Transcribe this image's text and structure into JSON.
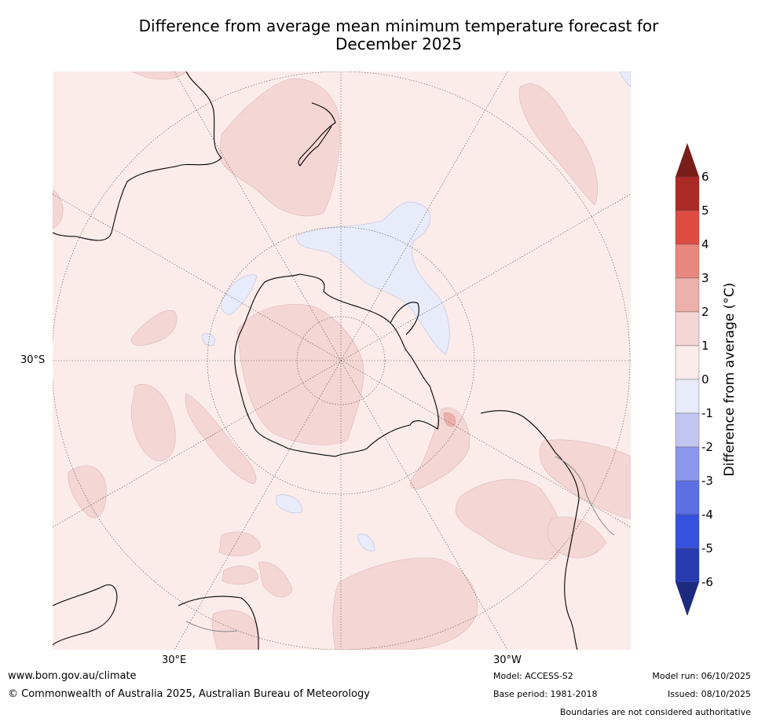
{
  "title_line1": "Difference from average mean minimum temperature forecast for",
  "title_line2": "December 2025",
  "axis": {
    "lat_label": "30°S",
    "lon_labels": [
      "30°E",
      "30°W"
    ]
  },
  "colorbar": {
    "label": "Difference from average (°C)",
    "ticks": [
      "6",
      "5",
      "4",
      "3",
      "2",
      "1",
      "0",
      "-1",
      "-2",
      "-3",
      "-4",
      "-5",
      "-6"
    ],
    "bins": [
      {
        "range": "above 6",
        "color": "#7a1e1a"
      },
      {
        "range": "5 to 6",
        "color": "#ab2a24"
      },
      {
        "range": "4 to 5",
        "color": "#dc4c42"
      },
      {
        "range": "3 to 4",
        "color": "#e8877d"
      },
      {
        "range": "2 to 3",
        "color": "#edb0aa"
      },
      {
        "range": "1 to 2",
        "color": "#f4d6d4"
      },
      {
        "range": "0 to 1",
        "color": "#fbecea"
      },
      {
        "range": "-1 to 0",
        "color": "#e8ebf9"
      },
      {
        "range": "-2 to -1",
        "color": "#c1c6f1"
      },
      {
        "range": "-3 to -2",
        "color": "#8a97ea"
      },
      {
        "range": "-4 to -3",
        "color": "#5d70e2"
      },
      {
        "range": "-5 to -4",
        "color": "#3452dd"
      },
      {
        "range": "-6 to -5",
        "color": "#283cb0"
      },
      {
        "range": "below -6",
        "color": "#1e2a80"
      }
    ]
  },
  "colors": {
    "background_anomaly": "#fbecea",
    "warm_patch": "#f4d6d4",
    "warmer_patch": "#edb0aa",
    "cool_patch": "#e8ebf9",
    "coastline": "#000000",
    "grid": "#555555"
  },
  "footer": {
    "website": "www.bom.gov.au/climate",
    "copyright": "© Commonwealth of Australia 2025, Australian Bureau of Meteorology",
    "model": "Model: ACCESS-S2",
    "base_period": "Base period: 1981-2018",
    "model_run": "Model run: 06/10/2025",
    "issued": "Issued: 08/10/2025",
    "disclaimer": "Boundaries are not considered authoritative"
  }
}
